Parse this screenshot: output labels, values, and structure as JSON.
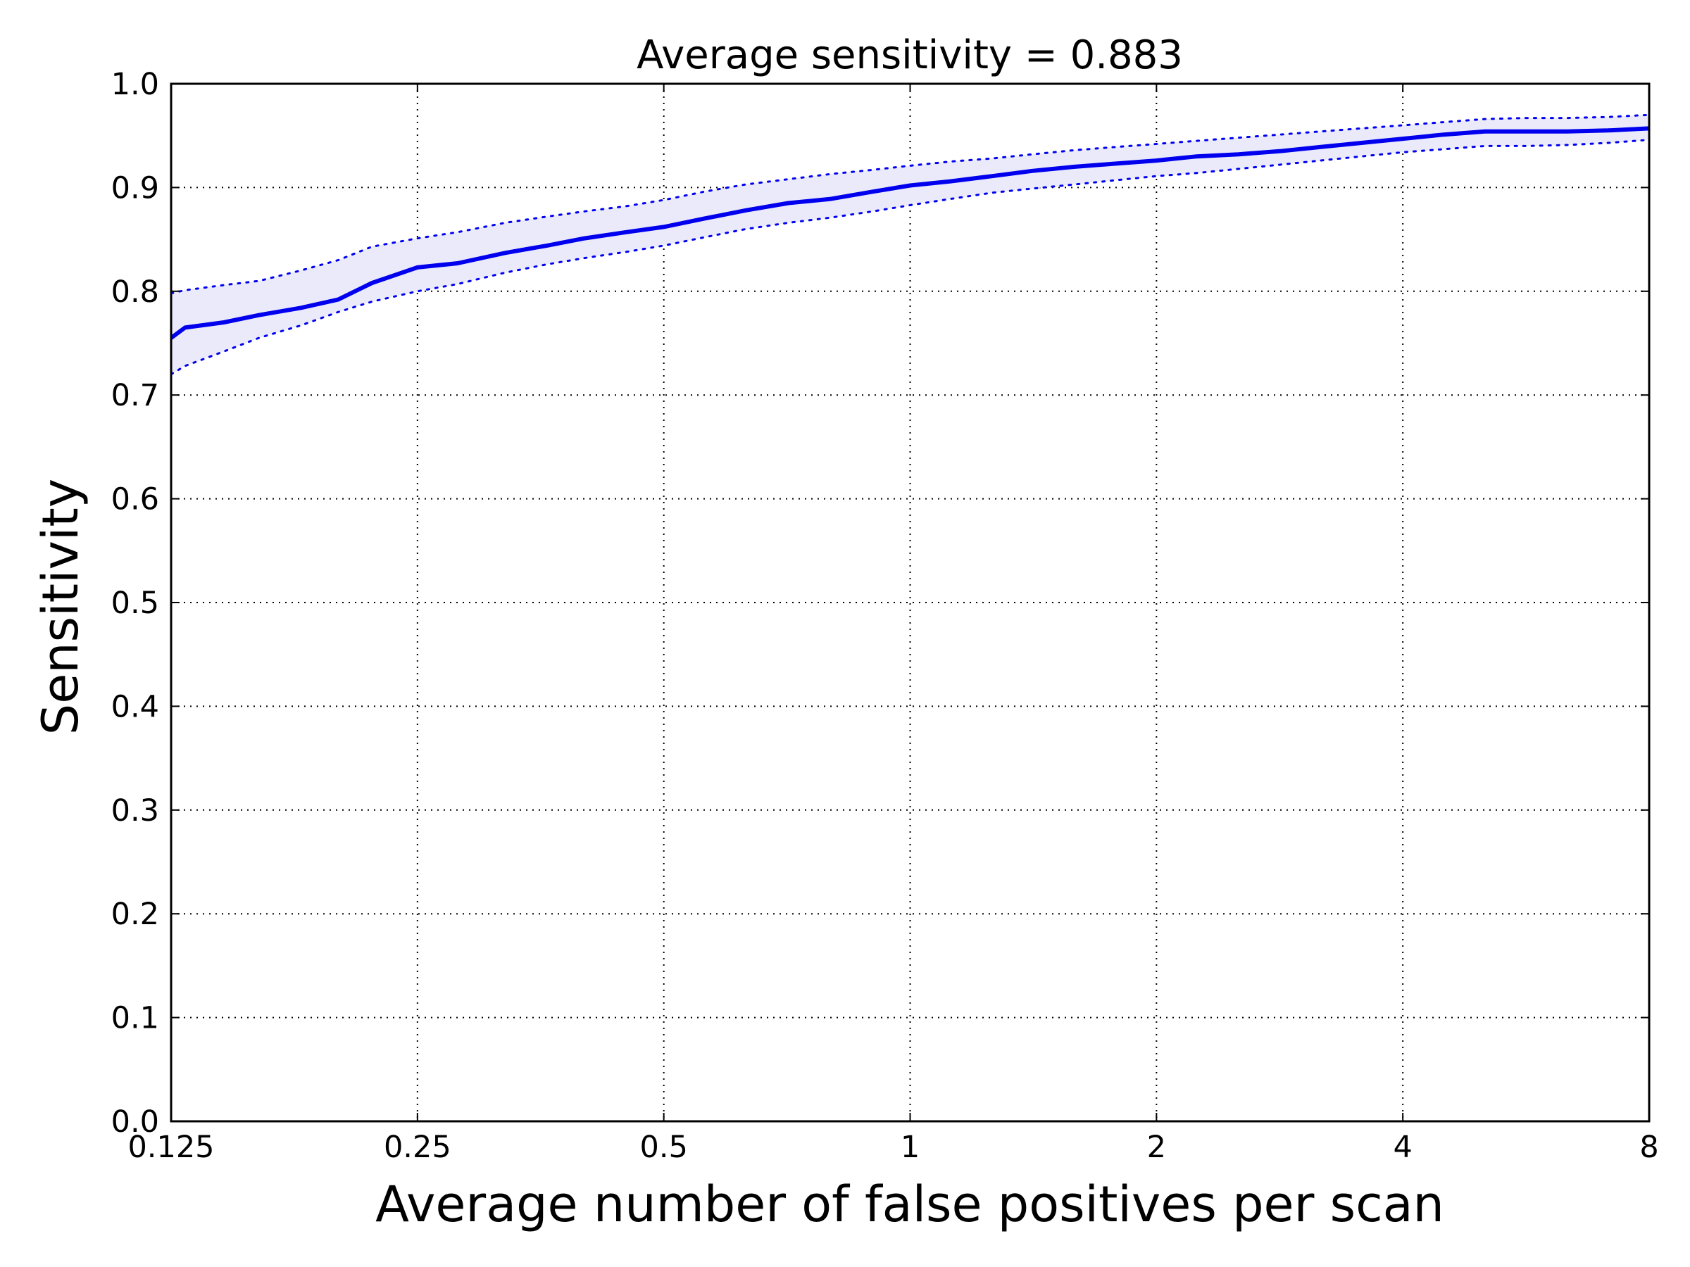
{
  "chart_data": {
    "type": "line",
    "title": "Average sensitivity = 0.883",
    "xlabel": "Average number of false positives per scan",
    "ylabel": "Sensitivity",
    "x_scale": "log2",
    "xlim": [
      0.125,
      8
    ],
    "ylim": [
      0.0,
      1.0
    ],
    "x_ticks": [
      0.125,
      0.25,
      0.5,
      1,
      2,
      4,
      8
    ],
    "x_tick_labels": [
      "0.125",
      "0.25",
      "0.5",
      "1",
      "2",
      "4",
      "8"
    ],
    "y_ticks": [
      0.0,
      0.1,
      0.2,
      0.3,
      0.4,
      0.5,
      0.6,
      0.7,
      0.8,
      0.9,
      1.0
    ],
    "y_tick_labels": [
      "0.0",
      "0.1",
      "0.2",
      "0.3",
      "0.4",
      "0.5",
      "0.6",
      "0.7",
      "0.8",
      "0.9",
      "1.0"
    ],
    "grid": true,
    "colors": {
      "line": "#0000ee",
      "band": "#eaeafb",
      "grid": "#000000"
    },
    "series": [
      {
        "x": [
          0.125,
          0.13,
          0.145,
          0.16,
          0.18,
          0.2,
          0.22,
          0.25,
          0.28,
          0.32,
          0.36,
          0.4,
          0.45,
          0.5,
          0.56,
          0.63,
          0.71,
          0.8,
          0.9,
          1.0,
          1.12,
          1.26,
          1.41,
          1.59,
          1.78,
          2.0,
          2.24,
          2.52,
          2.83,
          3.17,
          3.56,
          4.0,
          4.49,
          5.04,
          5.66,
          6.35,
          7.13,
          8.0
        ],
        "y": [
          0.755,
          0.765,
          0.77,
          0.777,
          0.784,
          0.792,
          0.808,
          0.823,
          0.827,
          0.837,
          0.844,
          0.851,
          0.857,
          0.862,
          0.87,
          0.878,
          0.885,
          0.889,
          0.896,
          0.902,
          0.906,
          0.911,
          0.916,
          0.92,
          0.923,
          0.926,
          0.93,
          0.932,
          0.935,
          0.939,
          0.943,
          0.947,
          0.951,
          0.954,
          0.954,
          0.954,
          0.955,
          0.957
        ],
        "lower": [
          0.72,
          0.728,
          0.742,
          0.755,
          0.767,
          0.78,
          0.79,
          0.8,
          0.807,
          0.818,
          0.826,
          0.832,
          0.838,
          0.844,
          0.852,
          0.86,
          0.866,
          0.871,
          0.877,
          0.883,
          0.889,
          0.895,
          0.899,
          0.903,
          0.907,
          0.911,
          0.914,
          0.918,
          0.922,
          0.926,
          0.93,
          0.934,
          0.937,
          0.94,
          0.94,
          0.941,
          0.943,
          0.946
        ],
        "upper": [
          0.798,
          0.801,
          0.806,
          0.81,
          0.82,
          0.83,
          0.843,
          0.851,
          0.857,
          0.866,
          0.872,
          0.877,
          0.882,
          0.888,
          0.896,
          0.903,
          0.908,
          0.913,
          0.917,
          0.921,
          0.925,
          0.928,
          0.932,
          0.936,
          0.939,
          0.942,
          0.945,
          0.948,
          0.951,
          0.954,
          0.957,
          0.96,
          0.963,
          0.966,
          0.967,
          0.967,
          0.968,
          0.97
        ]
      }
    ]
  }
}
